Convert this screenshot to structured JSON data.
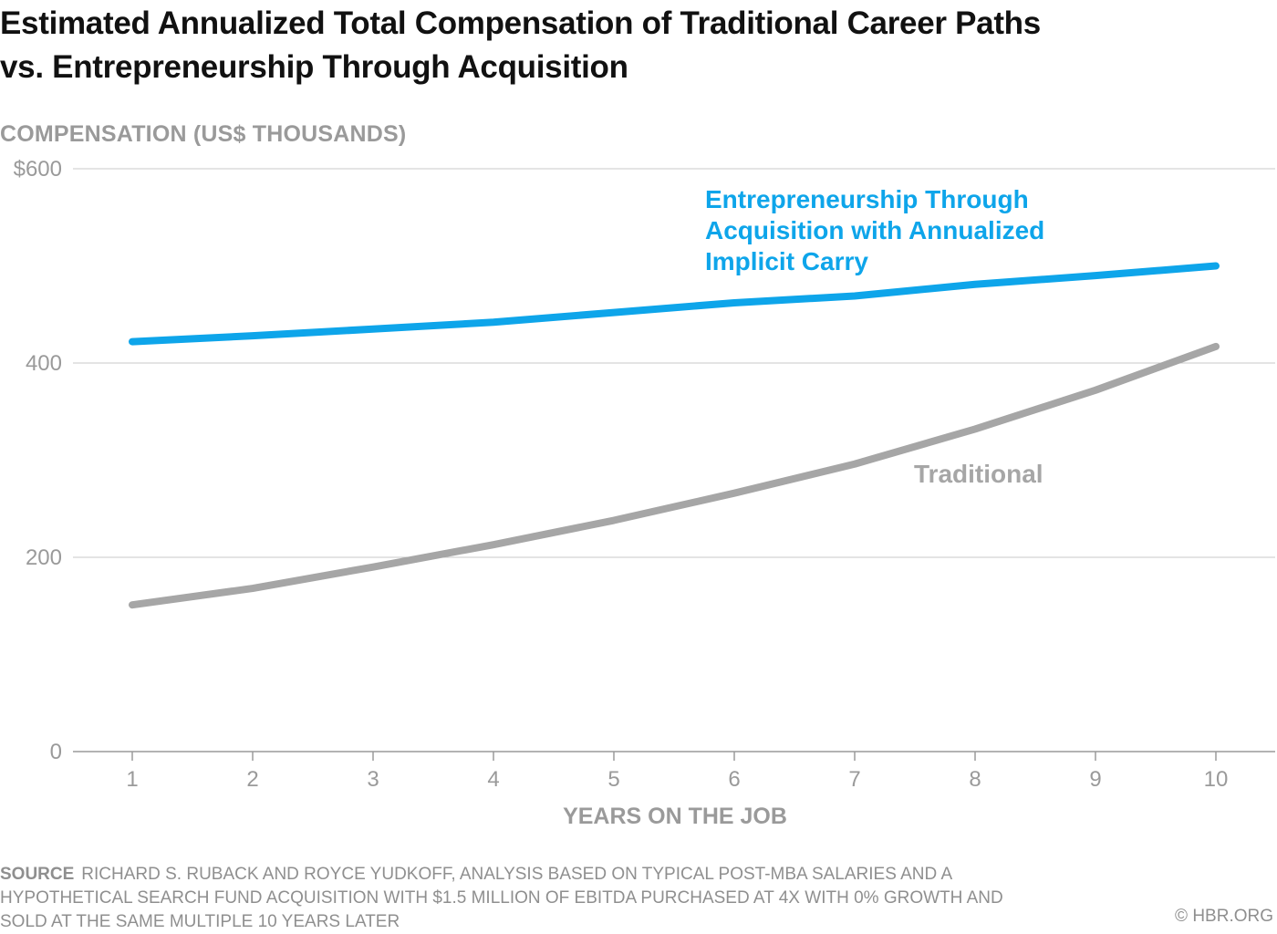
{
  "title_line1": "Estimated Annualized Total Compensation of Traditional Career Paths",
  "title_line2": "vs. Entrepreneurship Through Acquisition",
  "source_label": "SOURCE",
  "source_text": "RICHARD S. RUBACK AND ROYCE YUDKOFF, ANALYSIS BASED ON TYPICAL POST-MBA SALARIES AND A HYPOTHETICAL SEARCH FUND ACQUISITION WITH $1.5 MILLION OF EBITDA PURCHASED AT 4X WITH 0% GROWTH AND SOLD AT THE SAME MULTIPLE 10 YEARS LATER",
  "credit": "© HBR.ORG",
  "colors": {
    "eta": "#0ea5ea",
    "traditional": "#a6a6a6",
    "grid": "#c8c8c8",
    "axis_text": "#9a9a9a"
  },
  "chart_data": {
    "type": "line",
    "title": "Estimated Annualized Total Compensation of Traditional Career Paths vs. Entrepreneurship Through Acquisition",
    "xlabel": "YEARS ON THE JOB",
    "ylabel": "COMPENSATION (US$ THOUSANDS)",
    "x": [
      1,
      2,
      3,
      4,
      5,
      6,
      7,
      8,
      9,
      10
    ],
    "ylim": [
      0,
      600
    ],
    "yticks": [
      0,
      200,
      400,
      600
    ],
    "ytick_labels": [
      "0",
      "200",
      "400",
      "$600"
    ],
    "xtick_labels": [
      "1",
      "2",
      "3",
      "4",
      "5",
      "6",
      "7",
      "8",
      "9",
      "10"
    ],
    "grid": true,
    "series": [
      {
        "name": "Entrepreneurship Through Acquisition with Annualized Implicit Carry",
        "label_lines": [
          "Entrepreneurship Through",
          "Acquisition with Annualized",
          "Implicit Carry"
        ],
        "color": "#0ea5ea",
        "values": [
          422,
          428,
          435,
          442,
          452,
          462,
          469,
          481,
          490,
          500
        ]
      },
      {
        "name": "Traditional",
        "label_lines": [
          "Traditional"
        ],
        "color": "#a6a6a6",
        "values": [
          151,
          168,
          190,
          213,
          238,
          266,
          296,
          332,
          372,
          417
        ]
      }
    ]
  }
}
